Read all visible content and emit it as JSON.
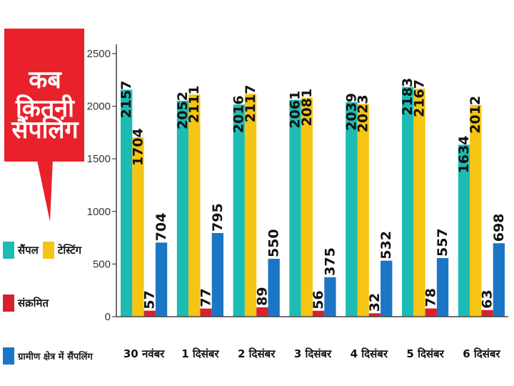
{
  "callout": {
    "line1": "कब कितनी",
    "line2": "सैंपलिंग"
  },
  "colors": {
    "sample": "#1cbcb4",
    "testing": "#f6c412",
    "infected": "#d9202e",
    "rural": "#1b76c5",
    "callout": "#e8212b"
  },
  "legend": [
    {
      "key": "sample",
      "label": "सैंपल",
      "color": "#1cbcb4"
    },
    {
      "key": "testing",
      "label": "टेस्टिंग",
      "color": "#f6c412"
    },
    {
      "key": "infected",
      "label": "संक्रमित",
      "color": "#d9202e"
    },
    {
      "key": "rural",
      "label": "ग्रामीण क्षेत्र में सैंपलिंग",
      "color": "#1b76c5"
    }
  ],
  "chart_data": {
    "type": "bar",
    "categories": [
      "30 नवंबर",
      "1 दिसंबर",
      "2 दिसंबर",
      "3 दिसंबर",
      "4 दिसंबर",
      "5 दिसंबर",
      "6 दिसंबर"
    ],
    "series": [
      {
        "name": "सैंपल",
        "values": [
          2157,
          2052,
          2016,
          2061,
          2039,
          2183,
          1634
        ]
      },
      {
        "name": "टेस्टिंग",
        "values": [
          1704,
          2111,
          2117,
          2081,
          2023,
          2167,
          2012
        ]
      },
      {
        "name": "संक्रमित",
        "values": [
          57,
          77,
          89,
          56,
          32,
          78,
          63
        ]
      },
      {
        "name": "ग्रामीण क्षेत्र में सैंपलिंग",
        "values": [
          704,
          795,
          550,
          375,
          532,
          557,
          698
        ]
      }
    ],
    "yticks": [
      0,
      500,
      1000,
      1500,
      2000,
      2500
    ],
    "ylim": [
      0,
      2600
    ],
    "grid": false,
    "legend_position": "left"
  }
}
